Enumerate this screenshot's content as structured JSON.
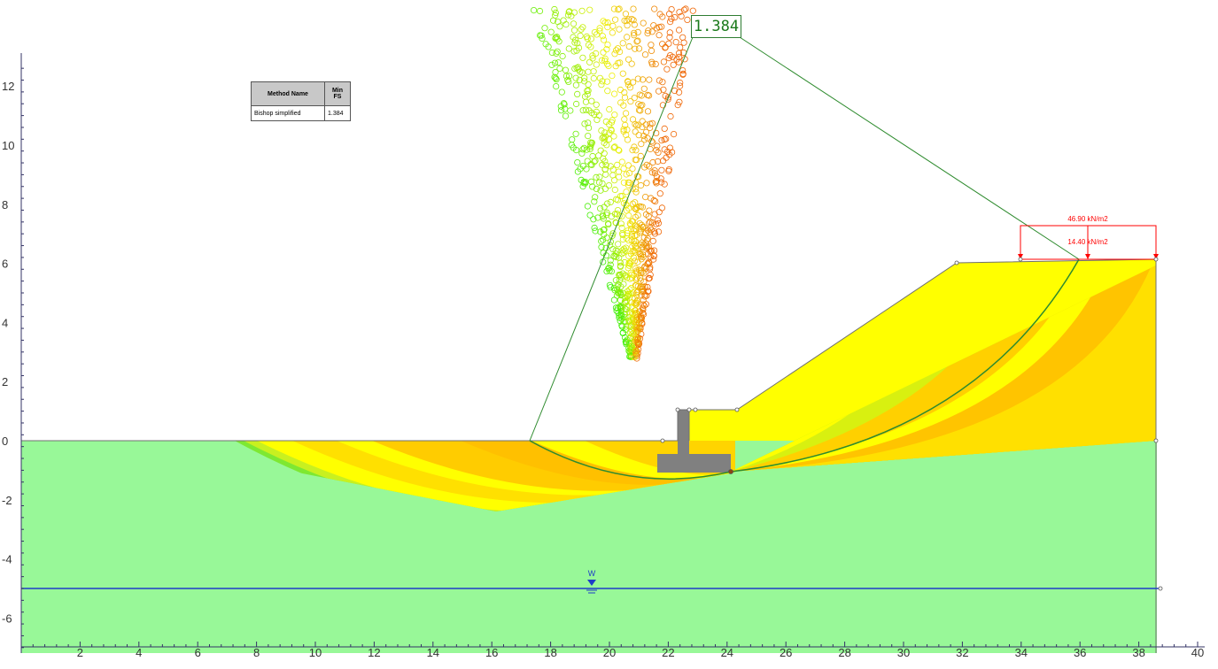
{
  "axes": {
    "x_ticks": [
      "2",
      "4",
      "6",
      "8",
      "10",
      "12",
      "14",
      "16",
      "18",
      "20",
      "22",
      "24",
      "26",
      "28",
      "30",
      "32",
      "34",
      "36",
      "38",
      "40"
    ],
    "y_ticks": [
      "12",
      "10",
      "8",
      "6",
      "4",
      "2",
      "0",
      "-2",
      "-4",
      "-6"
    ]
  },
  "legend": {
    "header_method": "Method Name",
    "header_fs": "Min FS",
    "method": "Bishop simplified",
    "fs": "1.384"
  },
  "callout": {
    "fs": "1.384"
  },
  "loads": {
    "top_label": "46.90 kN/m2",
    "inner_label": "14.40 kN/m2"
  },
  "water_table": {
    "label": "W"
  },
  "colors": {
    "foundation_soil": "#98f898",
    "embankment_soil": "#ffff00",
    "wall": "#808080",
    "critical_surface": "#2e8b2e",
    "water_table": "#1e3ec8",
    "load": "#ff0000"
  }
}
